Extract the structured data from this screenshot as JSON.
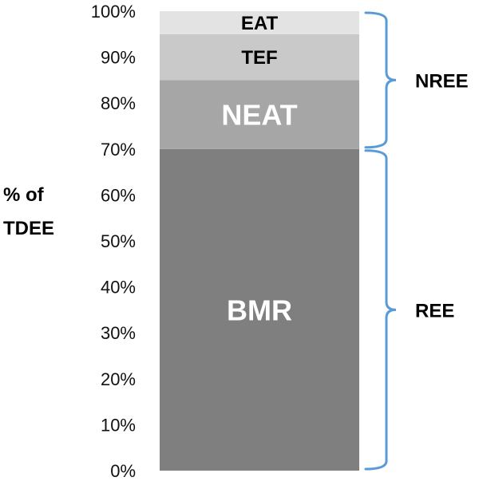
{
  "chart_data": {
    "type": "bar",
    "stacked": true,
    "ylabel_lines": [
      "% of",
      "TDEE"
    ],
    "ylim": [
      0,
      100
    ],
    "y_ticks": [
      "0%",
      "10%",
      "20%",
      "30%",
      "40%",
      "50%",
      "60%",
      "70%",
      "80%",
      "90%",
      "100%"
    ],
    "grid": false,
    "segments": [
      {
        "label": "BMR",
        "start": 0,
        "end": 70,
        "color": "#7f7f7f",
        "text_color": "#ffffff"
      },
      {
        "label": "NEAT",
        "start": 70,
        "end": 85,
        "color": "#a6a6a6",
        "text_color": "#ffffff"
      },
      {
        "label": "TEF",
        "start": 85,
        "end": 95,
        "color": "#c9c9c9",
        "text_color": "#000000"
      },
      {
        "label": "EAT",
        "start": 95,
        "end": 100,
        "color": "#e3e3e3",
        "text_color": "#000000"
      }
    ],
    "groups": [
      {
        "label": "NREE",
        "start": 70,
        "end": 100
      },
      {
        "label": "REE",
        "start": 0,
        "end": 70
      }
    ],
    "brace_color": "#5b9bd5"
  }
}
